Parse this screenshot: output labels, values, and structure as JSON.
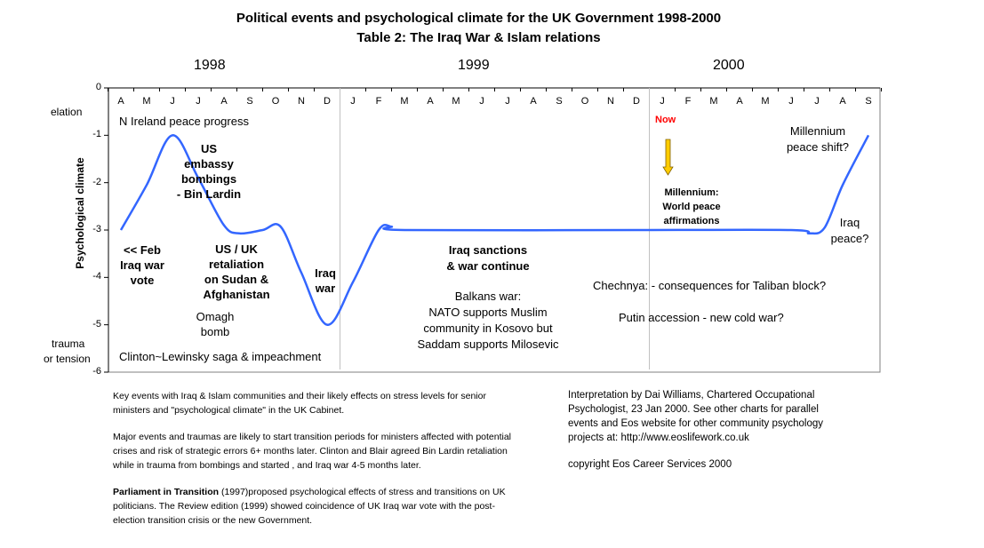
{
  "chart_data": {
    "type": "line",
    "title": "Political events and psychological climate for the UK Government 1998-2000",
    "subtitle": "Table 2: The Iraq War & Islam relations",
    "ylabel": "Psychological climate",
    "ylim": [
      -6,
      0
    ],
    "yticks": [
      "0",
      "-1",
      "-2",
      "-3",
      "-4",
      "-5",
      "-6"
    ],
    "y_level_labels": {
      "top": "elation",
      "bottom_line1": "trauma",
      "bottom_line2": "or tension"
    },
    "years": [
      "1998",
      "1999",
      "2000"
    ],
    "months": [
      "A",
      "M",
      "J",
      "J",
      "A",
      "S",
      "O",
      "N",
      "D",
      "J",
      "F",
      "M",
      "A",
      "M",
      "J",
      "J",
      "A",
      "S",
      "O",
      "N",
      "D",
      "J",
      "F",
      "M",
      "A",
      "M",
      "J",
      "J",
      "A",
      "S"
    ],
    "series": [
      {
        "name": "Psychological climate",
        "color": "#3366ff",
        "x": [
          0,
          1,
          2,
          3,
          4,
          4.6,
          5.5,
          6.2,
          7,
          8,
          9,
          10,
          10.5,
          11,
          20,
          26,
          26.7,
          27.3,
          28,
          29
        ],
        "values": [
          -3,
          -2.05,
          -1,
          -1.9,
          -2.9,
          -3.07,
          -3.0,
          -2.93,
          -3.9,
          -5,
          -4.1,
          -3.0,
          -2.93,
          -3.0,
          -3.0,
          -3.0,
          -3.07,
          -2.95,
          -2.05,
          -1
        ]
      }
    ],
    "annotations": {
      "n_ireland": "N Ireland peace progress",
      "us_embassy": [
        "US",
        "embassy",
        "bombings",
        "- Bin Lardin"
      ],
      "feb_vote": [
        "<<  Feb",
        "Iraq war",
        "vote"
      ],
      "retaliation": [
        "US / UK",
        "retaliation",
        "on Sudan &",
        "Afghanistan"
      ],
      "omagh": [
        "Omagh",
        "bomb"
      ],
      "iraq_war": [
        "Iraq",
        "war"
      ],
      "clinton": "Clinton~Lewinsky saga & impeachment",
      "sanctions": [
        "Iraq sanctions",
        "& war continue"
      ],
      "balkans": [
        "Balkans war:",
        "NATO  supports Muslim",
        "community in Kosovo but",
        "Saddam supports Milosevic"
      ],
      "now": "Now",
      "millennium": [
        "Millennium:",
        "World peace",
        "affirmations"
      ],
      "millennium_shift": [
        "Millennium",
        "peace shift?"
      ],
      "iraq_peace": [
        "Iraq",
        "peace?"
      ],
      "chechnya": "Chechnya: -  consequences for Taliban block?",
      "putin": "Putin accession - new cold war?"
    }
  },
  "colors": {
    "line": "#3366ff",
    "now": "#ff0000",
    "arrow": "#ffcc00",
    "divider": "#c0c0c0"
  },
  "footer": {
    "p1": "Key events with Iraq & Islam communities and their likely effects on stress levels for senior ministers and \"psychological climate\" in the UK Cabinet.",
    "p2": "Major events and traumas are likely to start transition periods for ministers affected with potential crises and risk of strategic  errors 6+ months later.   Clinton and Blair agreed Bin Lardin retaliation while in trauma from bombings and started , and Iraq war 4-5 months later.",
    "p3_bold": "Parliament in Transition",
    "p3": " (1997)proposed psychological effects of stress and transitions on UK politicians.  The Review edition (1999) showed coincidence of UK Iraq war vote with the post-election transition crisis or the new Government.",
    "right1": "Interpretation by Dai Williams, Chartered Occupational Psychologist, 23 Jan 2000.  See other charts for parallel events and Eos website for other community psychology projects at:  http://www.eoslifework.co.uk",
    "right2": "copyright Eos Career Services 2000"
  }
}
